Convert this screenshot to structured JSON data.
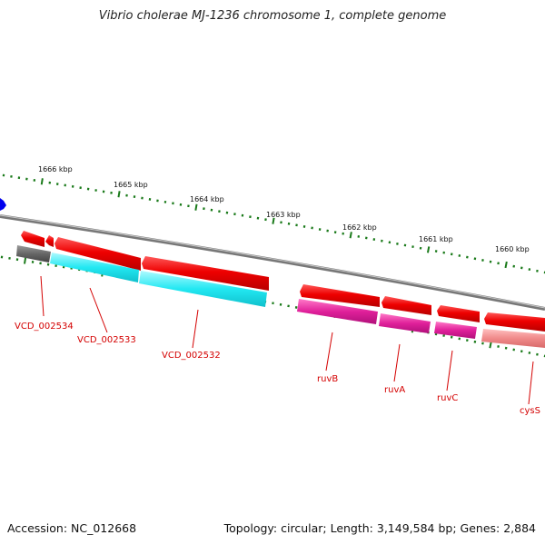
{
  "title": "Vibrio cholerae MJ-1236 chromosome 1, complete genome",
  "footer": {
    "accession": "Accession: NC_012668",
    "info": "Topology: circular; Length: 3,149,584 bp; Genes: 2,884"
  },
  "ruler_labels": [
    "1666 kbp",
    "1665 kbp",
    "1664 kbp",
    "1663 kbp",
    "1662 kbp",
    "1661 kbp",
    "1660 kbp"
  ],
  "gene_labels": [
    "VCD_002534",
    "VCD_002533",
    "VCD_002532",
    "ruvB",
    "ruvA",
    "ruvC",
    "cysS"
  ],
  "colors": {
    "backbone": "#8a8a8a",
    "ticks": "#1a7a1a",
    "gene_red": "#ee0000",
    "cog_gray": "#666666",
    "cog_cyan": "#1fe6f0",
    "cog_magenta": "#e0209a",
    "cog_salmon": "#f08a8a",
    "label": "#d40000",
    "marker": "#0000ee"
  }
}
